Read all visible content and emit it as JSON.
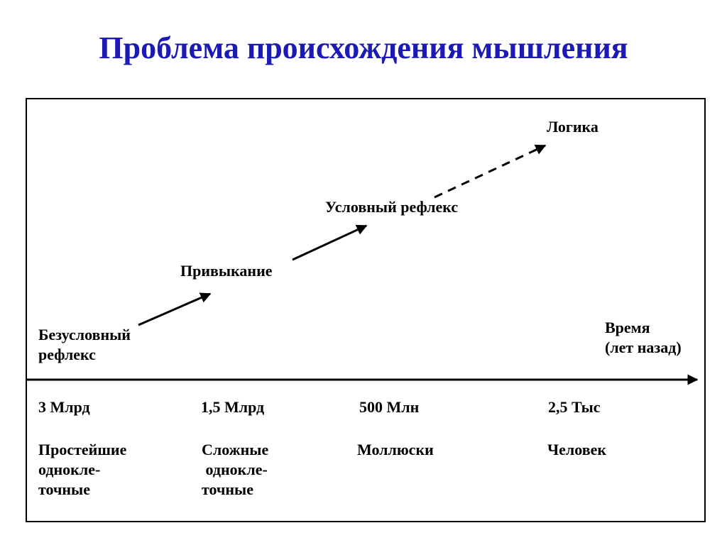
{
  "title": "Проблема происхождения мышления",
  "stages": {
    "unconditioned": "Безусловный\nрефлекс",
    "habituation": "Привыкание",
    "conditioned": "Условный рефлекс",
    "logic": "Логика"
  },
  "axis": {
    "label": "Время\n(лет назад)"
  },
  "timeline": [
    {
      "time": "3 Млрд",
      "organism": "Простейшие\nоднокле-\nточные"
    },
    {
      "time": "1,5 Млрд",
      "organism": "Сложные\n однокле-\nточные"
    },
    {
      "time": "500 Млн",
      "organism": "Моллюски"
    },
    {
      "time": "2,5 Тыс",
      "organism": "Человек"
    }
  ],
  "colors": {
    "title": "#1b1bb3",
    "ink": "#000000"
  }
}
